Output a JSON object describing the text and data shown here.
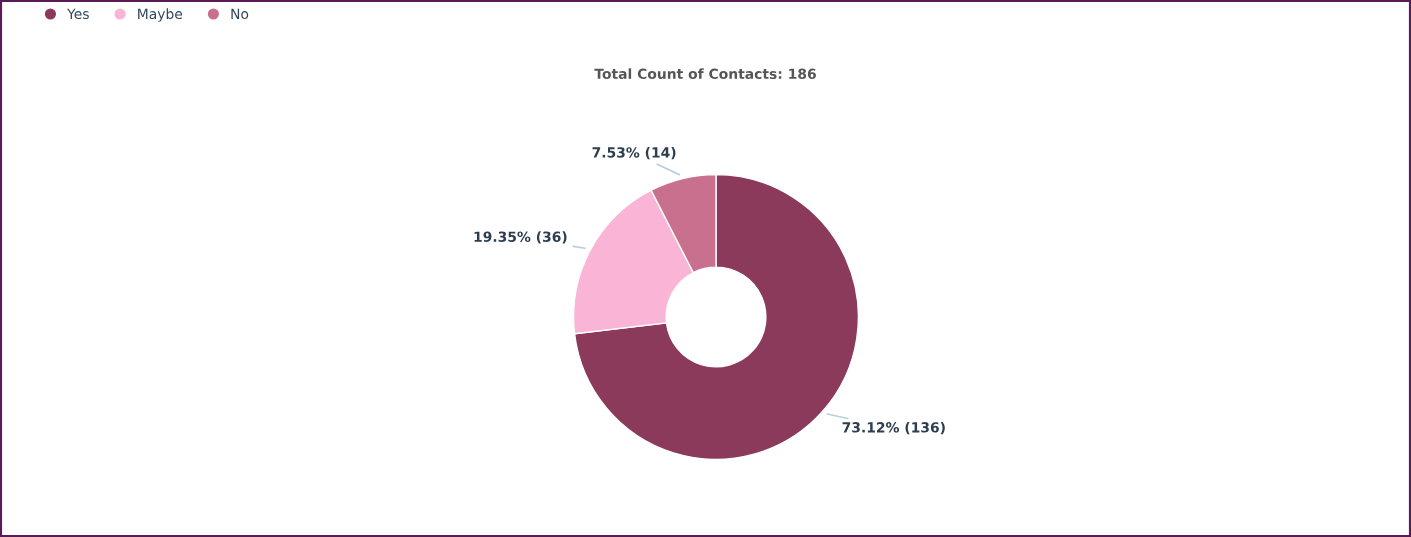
{
  "chart_data": {
    "type": "donut",
    "title": "Total Count of Contacts: 186",
    "categories": [
      "Yes",
      "Maybe",
      "No"
    ],
    "values": [
      136,
      36,
      14
    ],
    "colors": [
      "#8b3a5c",
      "#f9b4d6",
      "#c9708f"
    ],
    "value_labels": [
      "73.12% (136)",
      "19.35% (36)",
      "7.53% (14)"
    ],
    "legend": "top left"
  }
}
